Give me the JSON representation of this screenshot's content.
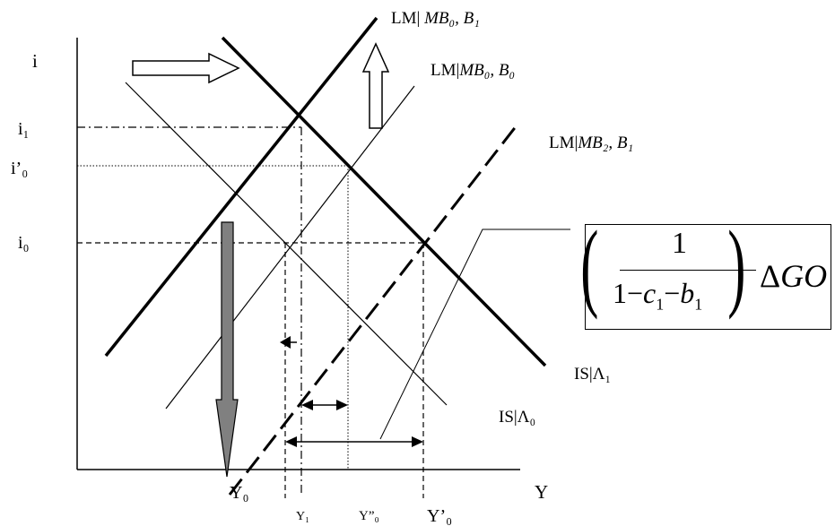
{
  "axes": {
    "y_axis_label": "i",
    "x_axis_label": "Y"
  },
  "y_ticks": {
    "i1": "i₁",
    "i_prime_0": "i’₀",
    "i0": "i₀"
  },
  "x_ticks": {
    "Y0": "Y₀",
    "Y1": "Y₁",
    "Y_dprime_0": "Y”₀",
    "Y_prime_0": "Y’₀"
  },
  "curves": {
    "lm_mb0_b1": {
      "prefix": "LM| ",
      "italic": "MB₀, B₁"
    },
    "lm_mb0_b0": {
      "prefix": "LM|",
      "italic": "MB₀, B₀"
    },
    "lm_mb2_b1": {
      "prefix": "LM|",
      "italic": "MB₂, B₁"
    },
    "is_lambda1": "IS|Λ₁",
    "is_lambda0": "IS|Λ₀"
  },
  "formula": {
    "numerator": "1",
    "den_one": "1",
    "den_minus1": "−",
    "den_c": "c",
    "den_c_sub": "1",
    "den_minus2": "−",
    "den_b": "b",
    "den_b_sub": "1",
    "delta": "Δ",
    "go": "GO"
  },
  "colors": {
    "line": "#000000",
    "down_arrow_fill": "#808080",
    "hollow_arrow_fill": "#ffffff"
  }
}
